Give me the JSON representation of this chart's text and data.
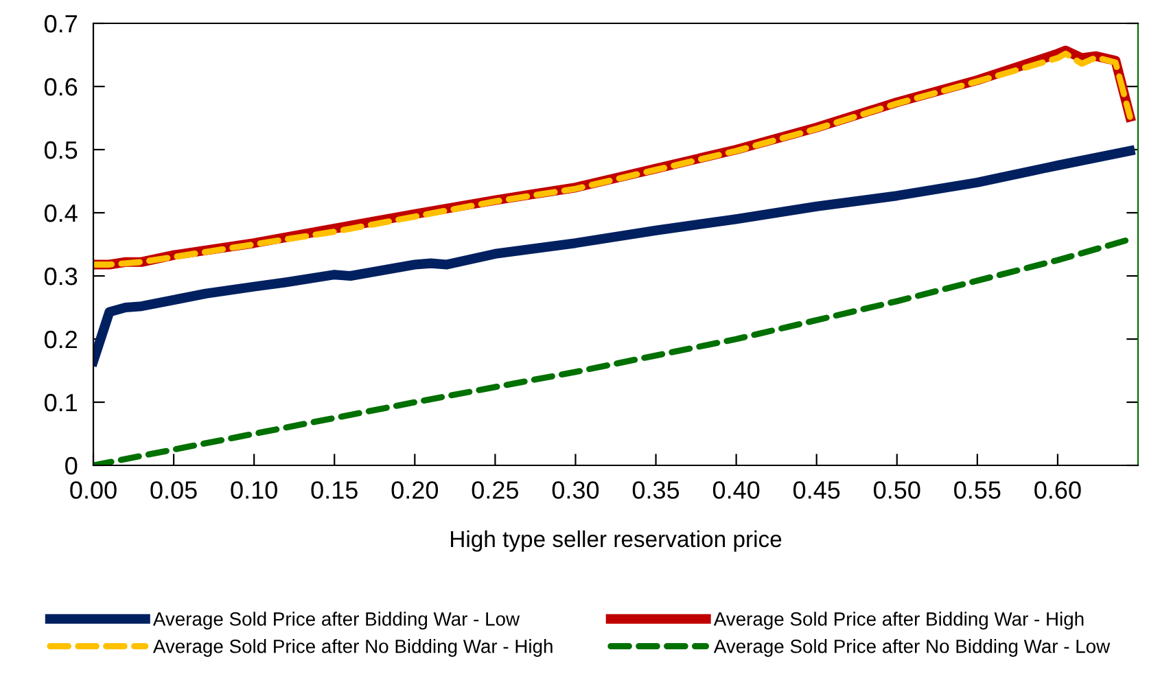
{
  "chart_data": {
    "type": "line",
    "xlabel": "High type seller reservation price",
    "xlim": [
      0,
      0.65
    ],
    "xticks": [
      {
        "value": 0,
        "label": "0.00"
      },
      0.05,
      {
        "value": 0.1,
        "label": "0.10"
      },
      0.15,
      {
        "value": 0.2,
        "label": "0.20"
      },
      0.25,
      {
        "value": 0.3,
        "label": "0.30"
      },
      0.35,
      {
        "value": 0.4,
        "label": "0.40"
      },
      0.45,
      {
        "value": 0.5,
        "label": "0.50"
      },
      0.55,
      {
        "value": 0.6,
        "label": "0.60"
      }
    ],
    "ylim": [
      0,
      0.7
    ],
    "yticks": [
      0,
      0.1,
      0.2,
      0.3,
      0.4,
      0.5,
      0.6,
      0.7
    ],
    "grid": false,
    "legend": "bottom",
    "marker": "none",
    "series": [
      {
        "name": "Average Sold Price after Bidding War - Low",
        "color": "#002060",
        "line_style": "solid",
        "x": [
          0,
          0.01,
          0.02,
          0.03,
          0.05,
          0.07,
          0.1,
          0.12,
          0.15,
          0.16,
          0.2,
          0.21,
          0.22,
          0.25,
          0.3,
          0.35,
          0.4,
          0.45,
          0.5,
          0.55,
          0.6,
          0.645
        ],
        "values": [
          0.165,
          0.243,
          0.25,
          0.252,
          0.262,
          0.272,
          0.283,
          0.29,
          0.302,
          0.3,
          0.318,
          0.32,
          0.318,
          0.335,
          0.352,
          0.372,
          0.39,
          0.41,
          0.427,
          0.448,
          0.475,
          0.498
        ]
      },
      {
        "name": "Average Sold Price after Bidding War - High",
        "color": "#c00000",
        "line_style": "solid",
        "x": [
          0,
          0.01,
          0.02,
          0.03,
          0.05,
          0.1,
          0.15,
          0.2,
          0.25,
          0.3,
          0.35,
          0.4,
          0.45,
          0.5,
          0.55,
          0.58,
          0.6,
          0.605,
          0.615,
          0.624,
          0.636,
          0.645
        ],
        "values": [
          0.318,
          0.318,
          0.322,
          0.322,
          0.333,
          0.352,
          0.375,
          0.398,
          0.42,
          0.44,
          0.47,
          0.5,
          0.535,
          0.575,
          0.61,
          0.635,
          0.652,
          0.657,
          0.645,
          0.648,
          0.641,
          0.552
        ]
      },
      {
        "name": "Average Sold Price after No Bidding War - High",
        "color": "#ffc000",
        "line_style": "dashed",
        "x": [
          0,
          0.01,
          0.02,
          0.03,
          0.05,
          0.1,
          0.15,
          0.2,
          0.25,
          0.3,
          0.35,
          0.4,
          0.45,
          0.5,
          0.55,
          0.58,
          0.6,
          0.605,
          0.615,
          0.624,
          0.636,
          0.645
        ],
        "values": [
          0.318,
          0.318,
          0.32,
          0.322,
          0.33,
          0.35,
          0.37,
          0.394,
          0.418,
          0.438,
          0.468,
          0.498,
          0.533,
          0.573,
          0.608,
          0.63,
          0.645,
          0.652,
          0.636,
          0.646,
          0.638,
          0.552
        ]
      },
      {
        "name": "Average Sold Price after No Bidding War - Low",
        "color": "#007000",
        "line_style": "dashed",
        "x": [
          0,
          0.1,
          0.2,
          0.3,
          0.4,
          0.5,
          0.6,
          0.645
        ],
        "values": [
          0,
          0.05,
          0.1,
          0.148,
          0.2,
          0.26,
          0.325,
          0.358
        ]
      }
    ]
  }
}
